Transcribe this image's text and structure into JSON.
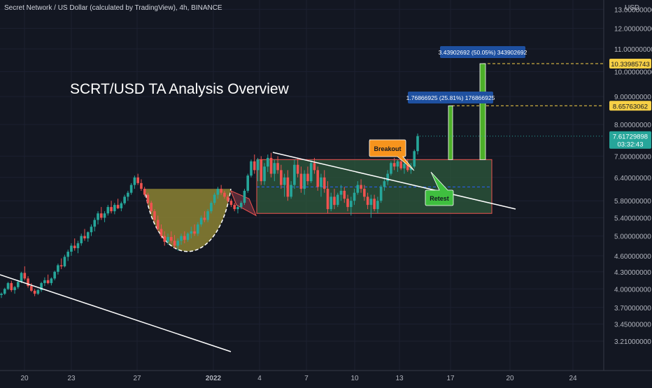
{
  "header": {
    "symbol_line": "Secret Network / US Dollar (calculated by TradingView), 4h, BINANCE",
    "currency": "USD"
  },
  "chart_data": {
    "type": "candlestick",
    "title": "SCRT/USD TA Analysis Overview",
    "y_axis": {
      "scale": "log",
      "range": [
        3.15,
        13.3
      ],
      "tick_labels": [
        "13.00000000",
        "12.00000000",
        "11.00000000",
        "10.00000000",
        "9.00000000",
        "8.00000000",
        "7.00000000",
        "6.40000000",
        "5.80000000",
        "5.40000000",
        "5.00000000",
        "4.60000000",
        "4.30000000",
        "4.00000000",
        "3.70000000",
        "3.45000000",
        "3.21000000"
      ]
    },
    "x_axis": {
      "tick_labels": [
        "20",
        "23",
        "27",
        "2022",
        "4",
        "7",
        "10",
        "13",
        "17",
        "20",
        "24"
      ]
    },
    "price_ohlc": [
      [
        3.9,
        3.94,
        3.85,
        3.92
      ],
      [
        3.92,
        4.02,
        3.9,
        4.0
      ],
      [
        4.0,
        4.12,
        3.98,
        4.1
      ],
      [
        4.1,
        4.14,
        3.95,
        3.98
      ],
      [
        3.98,
        4.05,
        3.92,
        4.03
      ],
      [
        4.03,
        4.15,
        4.0,
        4.12
      ],
      [
        4.12,
        4.3,
        4.1,
        4.28
      ],
      [
        4.28,
        4.4,
        4.15,
        4.18
      ],
      [
        4.18,
        4.22,
        4.02,
        4.05
      ],
      [
        4.05,
        4.1,
        3.95,
        3.97
      ],
      [
        3.97,
        4.0,
        3.88,
        3.92
      ],
      [
        3.92,
        4.0,
        3.9,
        3.98
      ],
      [
        3.98,
        4.12,
        3.95,
        4.1
      ],
      [
        4.1,
        4.2,
        4.05,
        4.15
      ],
      [
        4.15,
        4.25,
        4.08,
        4.1
      ],
      [
        4.1,
        4.2,
        4.06,
        4.18
      ],
      [
        4.18,
        4.32,
        4.15,
        4.3
      ],
      [
        4.3,
        4.45,
        4.25,
        4.42
      ],
      [
        4.42,
        4.55,
        4.35,
        4.4
      ],
      [
        4.4,
        4.62,
        4.38,
        4.58
      ],
      [
        4.58,
        4.72,
        4.5,
        4.68
      ],
      [
        4.68,
        4.85,
        4.6,
        4.8
      ],
      [
        4.8,
        4.95,
        4.7,
        4.75
      ],
      [
        4.75,
        4.9,
        4.65,
        4.85
      ],
      [
        4.85,
        5.05,
        4.8,
        5.0
      ],
      [
        5.0,
        5.15,
        4.9,
        4.95
      ],
      [
        4.95,
        5.1,
        4.88,
        5.08
      ],
      [
        5.08,
        5.25,
        5.0,
        5.2
      ],
      [
        5.2,
        5.4,
        5.1,
        5.35
      ],
      [
        5.35,
        5.55,
        5.25,
        5.5
      ],
      [
        5.5,
        5.65,
        5.35,
        5.4
      ],
      [
        5.4,
        5.55,
        5.3,
        5.5
      ],
      [
        5.5,
        5.7,
        5.45,
        5.65
      ],
      [
        5.65,
        5.8,
        5.5,
        5.55
      ],
      [
        5.55,
        5.75,
        5.48,
        5.7
      ],
      [
        5.7,
        5.85,
        5.6,
        5.62
      ],
      [
        5.62,
        5.78,
        5.55,
        5.74
      ],
      [
        5.74,
        5.95,
        5.7,
        5.9
      ],
      [
        5.9,
        6.05,
        5.8,
        6.0
      ],
      [
        6.0,
        6.25,
        5.95,
        6.2
      ],
      [
        6.2,
        6.45,
        6.1,
        6.4
      ],
      [
        6.4,
        6.5,
        6.2,
        6.25
      ],
      [
        6.25,
        6.35,
        6.05,
        6.1
      ],
      [
        6.1,
        6.15,
        5.9,
        5.95
      ],
      [
        5.95,
        6.0,
        5.7,
        5.75
      ],
      [
        5.75,
        5.8,
        5.5,
        5.55
      ],
      [
        5.55,
        5.6,
        5.3,
        5.35
      ],
      [
        5.35,
        5.45,
        5.1,
        5.15
      ],
      [
        5.15,
        5.25,
        4.95,
        5.0
      ],
      [
        5.0,
        5.1,
        4.8,
        4.88
      ],
      [
        4.88,
        5.05,
        4.82,
        4.98
      ],
      [
        4.98,
        5.1,
        4.85,
        4.9
      ],
      [
        4.9,
        5.02,
        4.75,
        4.8
      ],
      [
        4.8,
        4.95,
        4.7,
        4.9
      ],
      [
        4.9,
        5.05,
        4.82,
        5.0
      ],
      [
        5.0,
        5.1,
        4.85,
        4.92
      ],
      [
        4.92,
        5.08,
        4.88,
        5.05
      ],
      [
        5.05,
        5.2,
        4.95,
        5.1
      ],
      [
        5.1,
        5.25,
        5.0,
        5.05
      ],
      [
        5.05,
        5.3,
        5.0,
        5.25
      ],
      [
        5.25,
        5.45,
        5.2,
        5.4
      ],
      [
        5.4,
        5.55,
        5.3,
        5.35
      ],
      [
        5.35,
        5.6,
        5.3,
        5.55
      ],
      [
        5.55,
        5.8,
        5.5,
        5.75
      ],
      [
        5.75,
        6.0,
        5.7,
        5.95
      ],
      [
        5.95,
        6.15,
        5.85,
        6.1
      ],
      [
        6.1,
        6.2,
        5.95,
        6.0
      ],
      [
        6.0,
        6.05,
        5.85,
        5.9
      ],
      [
        5.9,
        5.95,
        5.75,
        5.8
      ],
      [
        5.8,
        5.85,
        5.65,
        5.7
      ],
      [
        5.7,
        5.75,
        5.55,
        5.6
      ],
      [
        5.6,
        5.7,
        5.5,
        5.65
      ],
      [
        5.65,
        5.8,
        5.6,
        5.75
      ],
      [
        5.75,
        6.1,
        5.7,
        6.05
      ],
      [
        6.05,
        6.5,
        6.0,
        6.45
      ],
      [
        6.45,
        6.9,
        6.4,
        6.85
      ],
      [
        6.85,
        7.05,
        6.5,
        6.6
      ],
      [
        6.6,
        6.95,
        6.3,
        6.9
      ],
      [
        6.9,
        7.0,
        6.2,
        6.3
      ],
      [
        6.3,
        6.8,
        6.2,
        6.7
      ],
      [
        6.7,
        7.05,
        6.55,
        6.95
      ],
      [
        6.95,
        7.1,
        6.4,
        6.5
      ],
      [
        6.5,
        6.9,
        6.3,
        6.8
      ],
      [
        6.8,
        7.0,
        6.5,
        6.6
      ],
      [
        6.6,
        6.75,
        6.1,
        6.2
      ],
      [
        6.2,
        6.5,
        5.9,
        6.4
      ],
      [
        6.4,
        6.6,
        5.8,
        5.9
      ],
      [
        5.9,
        6.3,
        5.85,
        6.2
      ],
      [
        6.2,
        6.9,
        6.1,
        6.75
      ],
      [
        6.75,
        6.95,
        6.4,
        6.5
      ],
      [
        6.5,
        6.7,
        6.0,
        6.1
      ],
      [
        6.1,
        6.6,
        5.95,
        6.5
      ],
      [
        6.5,
        6.7,
        6.2,
        6.3
      ],
      [
        6.3,
        6.9,
        6.25,
        6.8
      ],
      [
        6.8,
        6.95,
        6.5,
        6.6
      ],
      [
        6.6,
        6.7,
        6.05,
        6.15
      ],
      [
        6.15,
        6.5,
        5.9,
        6.4
      ],
      [
        6.4,
        6.6,
        6.0,
        6.1
      ],
      [
        6.1,
        6.3,
        5.5,
        5.6
      ],
      [
        5.6,
        6.0,
        5.55,
        5.9
      ],
      [
        5.9,
        6.1,
        5.6,
        5.7
      ],
      [
        5.7,
        6.0,
        5.65,
        5.95
      ],
      [
        5.95,
        6.2,
        5.8,
        6.05
      ],
      [
        6.05,
        6.15,
        5.75,
        5.85
      ],
      [
        5.85,
        5.95,
        5.55,
        5.65
      ],
      [
        5.65,
        5.9,
        5.45,
        5.8
      ],
      [
        5.8,
        6.1,
        5.7,
        6.0
      ],
      [
        6.0,
        6.3,
        5.95,
        6.2
      ],
      [
        6.2,
        6.35,
        6.0,
        6.1
      ],
      [
        6.1,
        6.2,
        5.8,
        5.9
      ],
      [
        5.9,
        6.0,
        5.6,
        5.7
      ],
      [
        5.7,
        5.95,
        5.4,
        5.85
      ],
      [
        5.85,
        5.95,
        5.55,
        5.6
      ],
      [
        5.6,
        5.9,
        5.5,
        5.8
      ],
      [
        5.8,
        6.2,
        5.75,
        6.15
      ],
      [
        6.15,
        6.4,
        6.05,
        6.3
      ],
      [
        6.3,
        6.6,
        6.2,
        6.5
      ],
      [
        6.5,
        6.85,
        6.45,
        6.8
      ],
      [
        6.8,
        6.95,
        6.6,
        6.7
      ],
      [
        6.7,
        6.9,
        6.55,
        6.85
      ],
      [
        6.85,
        6.95,
        6.6,
        6.65
      ],
      [
        6.65,
        6.85,
        6.5,
        6.78
      ],
      [
        6.78,
        6.92,
        6.55,
        6.6
      ],
      [
        6.6,
        6.8,
        6.5,
        6.7
      ],
      [
        6.7,
        7.2,
        6.65,
        7.15
      ],
      [
        7.15,
        7.7,
        7.05,
        7.62
      ]
    ],
    "levels": {
      "range_top": 6.9,
      "range_bottom": 5.5,
      "range_mid": 6.15,
      "cup_rim": 6.1,
      "cup_bottom": 4.55,
      "target_1": 8.65763062,
      "target_2": 10.33985743,
      "current_price": 7.61729898
    },
    "price_labels": {
      "target_1": "8.65763062",
      "target_2": "10.33985743",
      "current_price": "7.61729898",
      "countdown": "03:32:43"
    },
    "measure_labels": {
      "measure_1": "1.76866925 (25.81%) 176866925",
      "measure_2": "3.43902692 (50.05%) 343902692"
    },
    "annotations": {
      "breakout": "Breakout",
      "retest": "Retest"
    },
    "colors": {
      "background": "#131722",
      "up": "#26a69a",
      "down": "#ef5350",
      "range_fill": "#2e5a3c",
      "cup_fill": "#8c8232",
      "trendline": "#ffffff",
      "target_line": "#f7d046",
      "measure_label_bg": "#1e50a0",
      "breakout_bg": "#f7941d",
      "retest_bg": "#3fbf3f",
      "target_bar": "#4caf28",
      "price_tag": "#26a69a"
    }
  }
}
